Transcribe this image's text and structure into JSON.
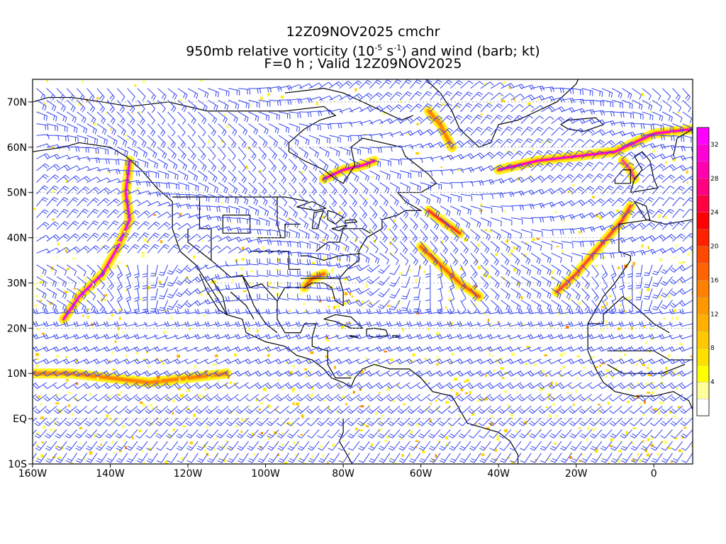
{
  "title": {
    "line1": "12Z09NOV2025 cmchr",
    "line2_prefix": "950mb relative vorticity (10",
    "line2_exp1": "-5",
    "line2_mid": " s",
    "line2_exp2": "-1",
    "line2_suffix": ") and wind (barb; kt)",
    "line3": "F=0 h ; Valid 12Z09NOV2025"
  },
  "map": {
    "lon_range": [
      -160,
      10
    ],
    "lat_range": [
      -10,
      75
    ],
    "lat_labels": [
      "70N",
      "60N",
      "50N",
      "40N",
      "30N",
      "20N",
      "10N",
      "EQ",
      "10S"
    ],
    "lat_values": [
      70,
      60,
      50,
      40,
      30,
      20,
      10,
      0,
      -10
    ],
    "lon_labels": [
      "160W",
      "140W",
      "120W",
      "100W",
      "80W",
      "60W",
      "40W",
      "20W",
      "0"
    ],
    "lon_values": [
      -160,
      -140,
      -120,
      -100,
      -80,
      -60,
      -40,
      -20,
      0
    ],
    "barb_color": "#3344ee",
    "coast_color": "#000000"
  },
  "colorbar": {
    "labels": [
      "4",
      "8",
      "12",
      "16",
      "20",
      "24",
      "28",
      "32"
    ],
    "colors": [
      "#ffffff",
      "#ffff99",
      "#ffff00",
      "#ffe000",
      "#ffc800",
      "#ffb000",
      "#ff9800",
      "#ff8000",
      "#ff6400",
      "#ff4800",
      "#ff2000",
      "#ff0000",
      "#ff0040",
      "#ff0080",
      "#ff00b0",
      "#ff00d8",
      "#ff00ff"
    ]
  }
}
